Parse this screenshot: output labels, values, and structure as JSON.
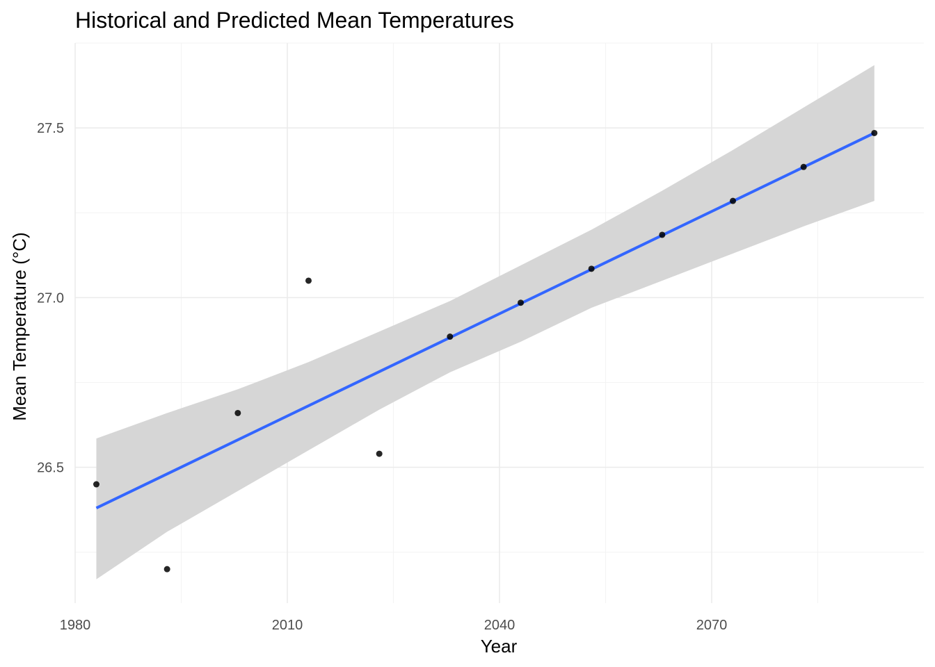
{
  "chart_data": {
    "type": "scatter",
    "title": "Historical and Predicted Mean Temperatures",
    "xlabel": "Year",
    "ylabel": "Mean Temperature (°C)",
    "xlim": [
      1980,
      2100
    ],
    "ylim": [
      26.1,
      27.75
    ],
    "x_ticks": [
      1980,
      2010,
      2040,
      2070
    ],
    "y_ticks": [
      26.5,
      27.0,
      27.5
    ],
    "grid": true,
    "legend": "none",
    "points": {
      "x": [
        1983,
        1993,
        2003,
        2013,
        2023,
        2033,
        2043,
        2053,
        2063,
        2073,
        2083,
        2093
      ],
      "y": [
        26.45,
        26.2,
        26.66,
        27.05,
        26.54,
        26.885,
        26.985,
        27.085,
        27.185,
        27.285,
        27.385,
        27.485
      ]
    },
    "trend_line": {
      "x": [
        1983,
        2093
      ],
      "y": [
        26.38,
        27.485
      ],
      "color": "#3366ff"
    },
    "confidence_band": {
      "x": [
        1983,
        1993,
        2003,
        2013,
        2023,
        2033,
        2043,
        2053,
        2063,
        2073,
        2083,
        2093
      ],
      "lower": [
        26.17,
        26.31,
        26.43,
        26.55,
        26.67,
        26.78,
        26.87,
        26.97,
        27.05,
        27.13,
        27.21,
        27.285
      ],
      "upper": [
        26.585,
        26.66,
        26.73,
        26.81,
        26.9,
        26.99,
        27.095,
        27.2,
        27.315,
        27.435,
        27.56,
        27.685
      ],
      "color": "#d6d6d6"
    },
    "point_color": "#000000"
  }
}
